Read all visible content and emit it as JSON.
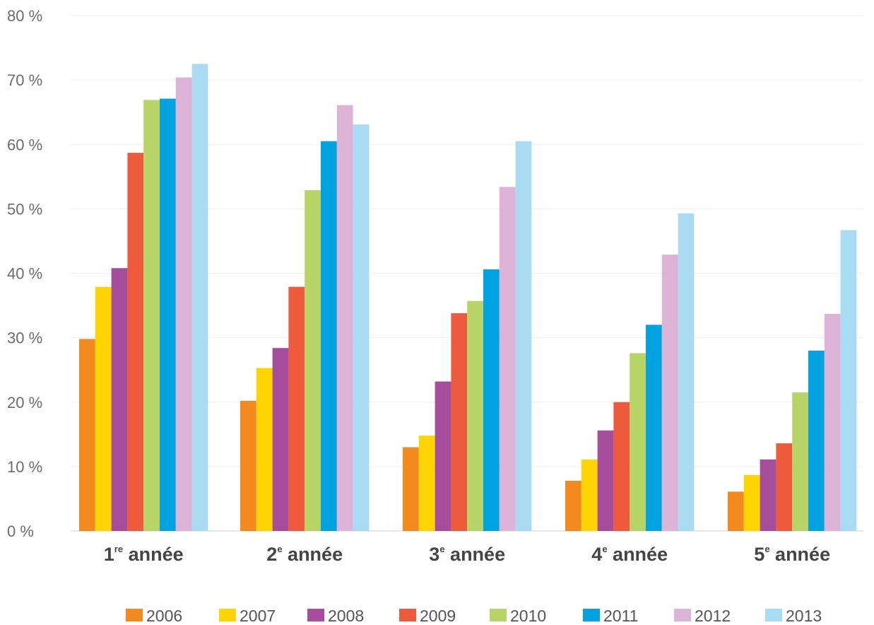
{
  "chart_data": {
    "type": "bar",
    "title": "",
    "xlabel": "",
    "ylabel": "",
    "ylim": [
      0,
      80
    ],
    "yticks": [
      "0 %",
      "10 %",
      "20 %",
      "30 %",
      "40 %",
      "50 %",
      "60 %",
      "70 %",
      "80 %"
    ],
    "grid": true,
    "legend_position": "bottom",
    "categories": [
      {
        "main": "1",
        "sup": "re",
        "rest": " année"
      },
      {
        "main": "2",
        "sup": "e",
        "rest": " année"
      },
      {
        "main": "3",
        "sup": "e",
        "rest": " année"
      },
      {
        "main": "4",
        "sup": "e",
        "rest": " année"
      },
      {
        "main": "5",
        "sup": "e",
        "rest": " année"
      }
    ],
    "series": [
      {
        "name": "2006",
        "color": "#f28a1f",
        "values": [
          29.8,
          20.2,
          13.0,
          7.8,
          6.1
        ]
      },
      {
        "name": "2007",
        "color": "#ffd400",
        "values": [
          37.9,
          25.3,
          14.8,
          11.1,
          8.7
        ]
      },
      {
        "name": "2008",
        "color": "#a64e9c",
        "values": [
          40.8,
          28.4,
          23.2,
          15.6,
          11.1
        ]
      },
      {
        "name": "2009",
        "color": "#ee5a3c",
        "values": [
          58.7,
          37.9,
          33.8,
          20.0,
          13.6
        ]
      },
      {
        "name": "2010",
        "color": "#b7d566",
        "values": [
          66.9,
          52.9,
          35.7,
          27.6,
          21.5
        ]
      },
      {
        "name": "2011",
        "color": "#00a3df",
        "values": [
          67.1,
          60.5,
          40.6,
          32.0,
          28.0
        ]
      },
      {
        "name": "2012",
        "color": "#ddb4d8",
        "values": [
          70.4,
          66.1,
          53.4,
          42.9,
          33.7
        ]
      },
      {
        "name": "2013",
        "color": "#a9dcf2",
        "values": [
          72.5,
          63.1,
          60.5,
          49.3,
          46.7
        ]
      }
    ]
  }
}
